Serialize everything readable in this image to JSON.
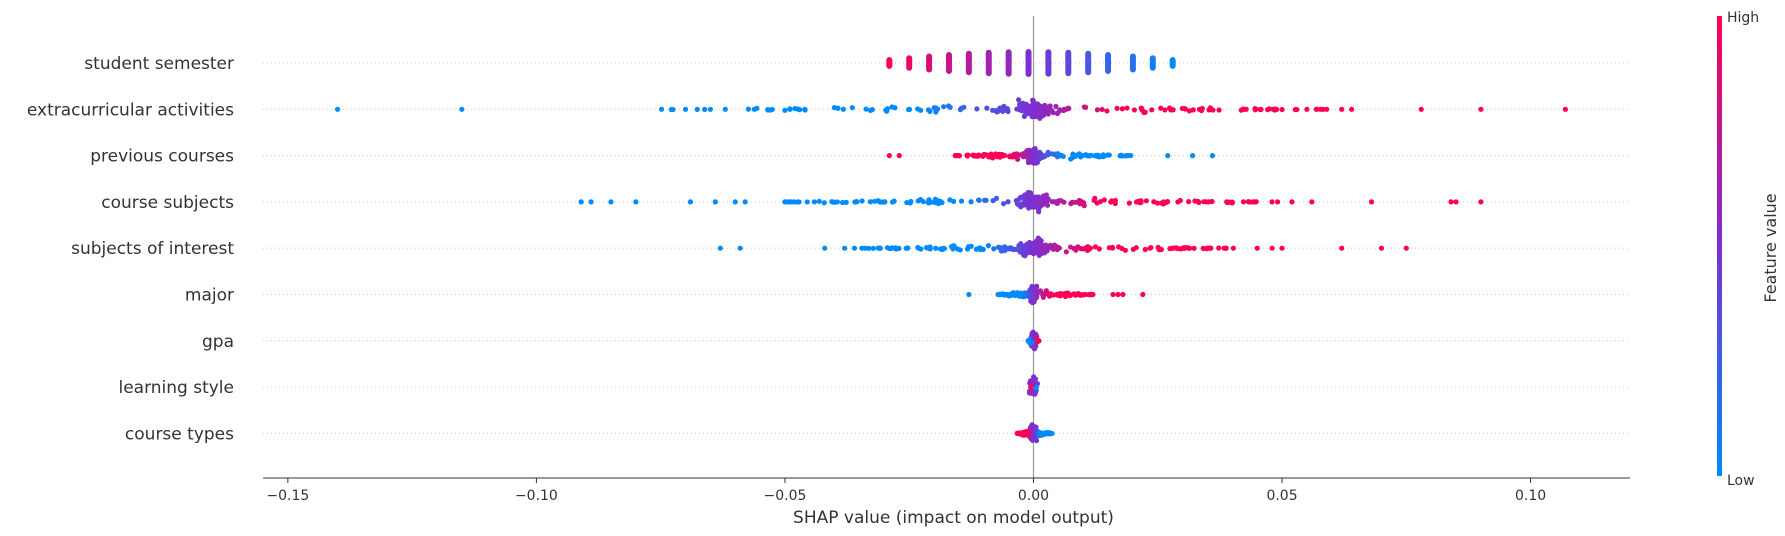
{
  "chart_data": {
    "type": "scatter",
    "subtype": "shap-beeswarm",
    "title": "",
    "xlabel": "SHAP value (impact on model output)",
    "xlim": [
      -0.155,
      0.12
    ],
    "xticks": [
      -0.15,
      -0.1,
      -0.05,
      0.0,
      0.05,
      0.1
    ],
    "xtick_labels": [
      "−0.15",
      "−0.10",
      "−0.05",
      "0.00",
      "0.05",
      "0.10"
    ],
    "grid": false,
    "features": [
      {
        "name": "student semester",
        "min": -0.029,
        "max": 0.028,
        "stripes": [
          -0.029,
          -0.025,
          -0.021,
          -0.017,
          -0.013,
          -0.009,
          -0.005,
          -0.001,
          0.003,
          0.007,
          0.011,
          0.015,
          0.02,
          0.024,
          0.028
        ]
      },
      {
        "name": "extracurricular activities",
        "min": -0.14,
        "max": 0.107,
        "outliers_low": [
          -0.14,
          -0.115,
          -0.07,
          -0.065,
          -0.062,
          -0.049,
          -0.046
        ],
        "outliers_high": [
          0.055,
          0.059,
          0.062,
          0.064,
          0.078,
          0.09,
          0.107
        ]
      },
      {
        "name": "previous courses",
        "min": -0.029,
        "max": 0.036,
        "outliers_low": [
          -0.029,
          -0.027
        ],
        "outliers_high": [
          0.027,
          0.032,
          0.036
        ]
      },
      {
        "name": "course subjects",
        "min": -0.091,
        "max": 0.09,
        "outliers_low": [
          -0.091,
          -0.089,
          -0.085,
          -0.08,
          -0.069,
          -0.064,
          -0.06,
          -0.058
        ],
        "outliers_high": [
          0.052,
          0.056,
          0.068,
          0.084,
          0.085,
          0.09
        ]
      },
      {
        "name": "subjects of interest",
        "min": -0.063,
        "max": 0.075,
        "outliers_low": [
          -0.063,
          -0.059,
          -0.042,
          -0.038,
          -0.036,
          -0.031
        ],
        "outliers_high": [
          0.035,
          0.045,
          0.048,
          0.05,
          0.062,
          0.07,
          0.075
        ]
      },
      {
        "name": "major",
        "min": -0.013,
        "max": 0.022,
        "outliers_low": [
          -0.013
        ],
        "outliers_high": [
          0.016,
          0.017,
          0.018,
          0.022
        ]
      },
      {
        "name": "gpa",
        "min": -0.002,
        "max": 0.002
      },
      {
        "name": "learning style",
        "min": -0.001,
        "max": 0.001
      },
      {
        "name": "course types",
        "min": -0.006,
        "max": 0.007
      }
    ],
    "colorbar": {
      "title": "Feature value",
      "high_label": "High",
      "low_label": "Low",
      "low_color": "#008bfb",
      "high_color": "#ff0052"
    }
  }
}
